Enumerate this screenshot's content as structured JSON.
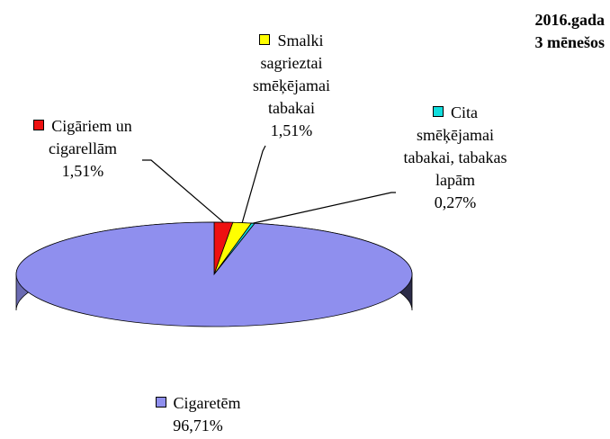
{
  "chart_data": {
    "type": "pie",
    "title": "2016.gada",
    "subtitle": "3 mēnešos",
    "categories": [
      "Cigāriem un cigarellām",
      "Smalki sagrieztai smēķējamai tabakai",
      "Cita smēķējamai tabakai, tabakas lapām",
      "Cigaretēm"
    ],
    "values": [
      1.51,
      1.51,
      0.27,
      96.71
    ],
    "value_labels": [
      "1,51%",
      "1,51%",
      "0,27%",
      "96,71%"
    ],
    "colors": [
      "#ee1111",
      "#ffff00",
      "#11dddd",
      "#8f8fee"
    ],
    "legend": true
  }
}
